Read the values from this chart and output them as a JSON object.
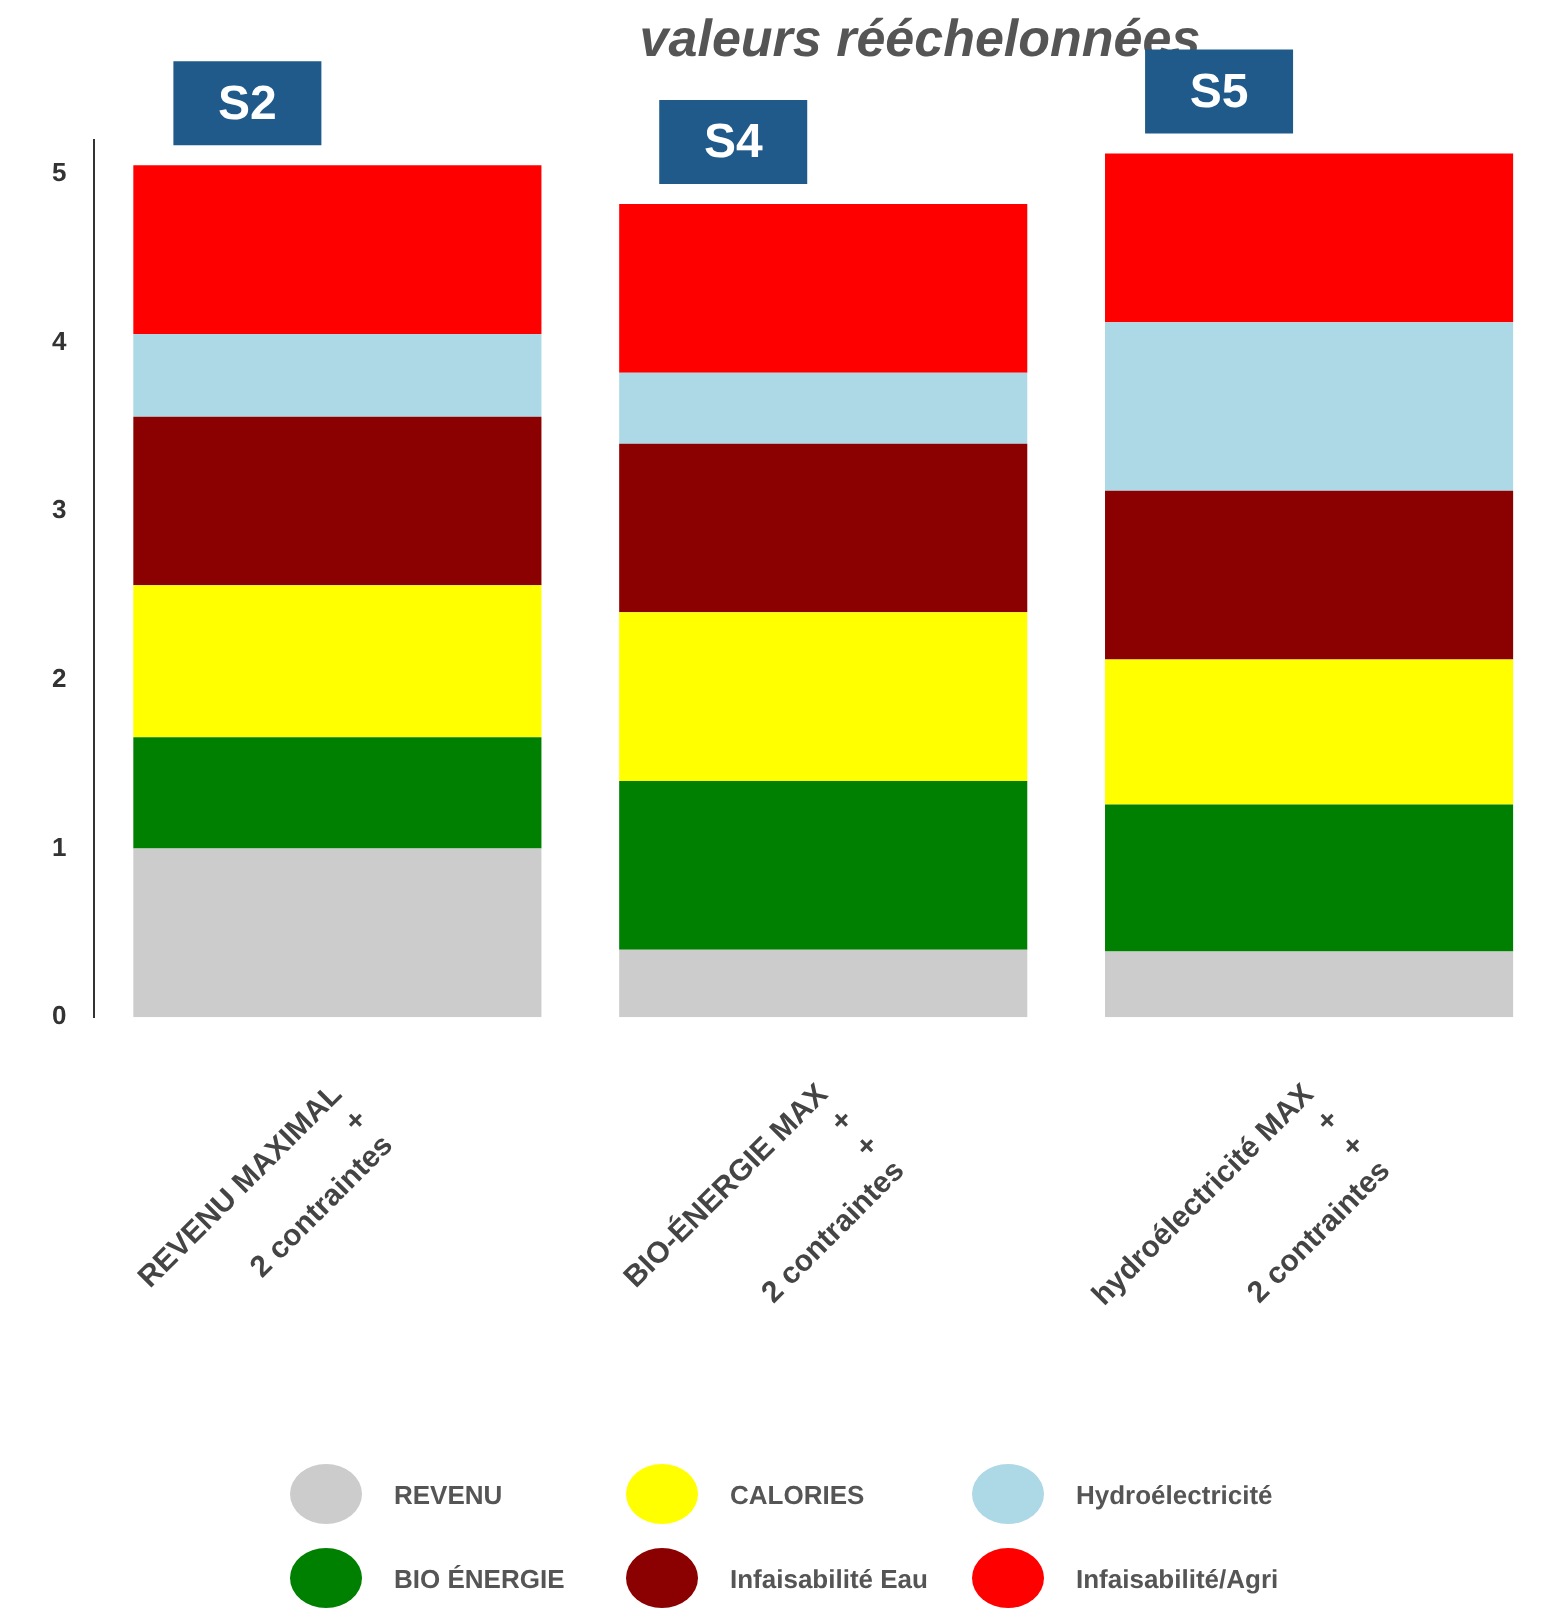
{
  "chart_data": {
    "type": "bar",
    "title": "valeurs rééchelonnées",
    "stacked": true,
    "categories": [
      "REVENU MAXIMAL\n+\n2 contraintes",
      "BIO-ÉNERGIE MAX\n+\n+\n2 contraintes",
      "hydroélectricité MAX\n+\n+\n2 contraintes"
    ],
    "series": [
      {
        "name": "REVENU",
        "color": "#cccccc",
        "values": [
          1.0,
          0.4,
          0.39
        ]
      },
      {
        "name": "BIO ÉNERGIE",
        "color": "#008000",
        "values": [
          0.66,
          1.0,
          0.87
        ]
      },
      {
        "name": "CALORIES",
        "color": "#ffff00",
        "values": [
          0.9,
          1.0,
          0.86
        ]
      },
      {
        "name": "Infaisabilité Eau",
        "color": "#8b0000",
        "values": [
          1.0,
          1.0,
          1.0
        ]
      },
      {
        "name": "Hydroélectricité",
        "color": "#add8e6",
        "values": [
          0.49,
          0.42,
          1.0
        ]
      },
      {
        "name": "Infaisabilité/Agri",
        "color": "#ff0000",
        "values": [
          1.0,
          1.0,
          1.0
        ]
      }
    ],
    "annotations": [
      "S2",
      "S4",
      "S5"
    ],
    "ylim": [
      0,
      5.2
    ],
    "yticks": [
      0,
      1,
      2,
      3,
      4,
      5
    ],
    "grid": false,
    "legend": "bottom"
  }
}
